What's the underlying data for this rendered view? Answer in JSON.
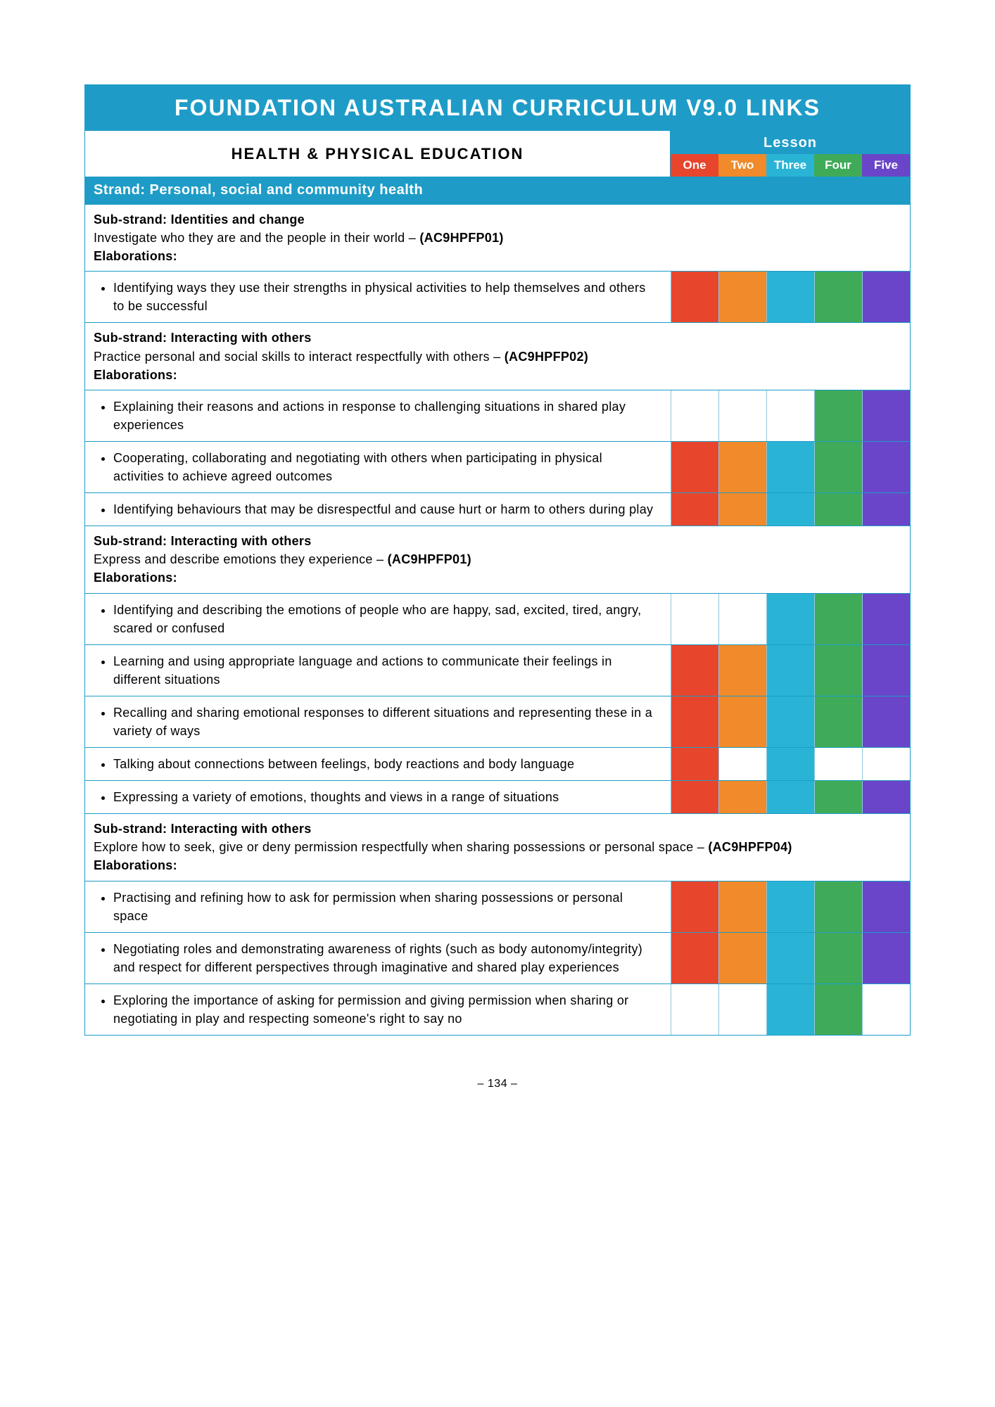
{
  "colors": {
    "header_bg": "#1e9cc7",
    "lesson": {
      "one": "#e8452d",
      "two": "#f08a2a",
      "three": "#29b4d6",
      "four": "#3fab58",
      "five": "#6a45c9"
    },
    "white": "#ffffff"
  },
  "title": "FOUNDATION AUSTRALIAN CURRICULUM V9.0 LINKS",
  "subject": "HEALTH & PHYSICAL EDUCATION",
  "lesson_label": "Lesson",
  "lesson_headers": [
    "One",
    "Two",
    "Three",
    "Four",
    "Five"
  ],
  "strand": "Strand: Personal, social and community health",
  "page_number": "– 134 –",
  "substrands": [
    {
      "title": "Sub-strand: Identities and change",
      "desc_pre": "Investigate who they are and the people in their world – ",
      "code": "(AC9HPFP01)",
      "desc_post": "",
      "elab_label": "Elaborations:",
      "items": [
        {
          "text": "Identifying ways they use their strengths in physical activities to help themselves and others to be successful",
          "marks": [
            "one",
            "two",
            "three",
            "four",
            "five"
          ]
        }
      ]
    },
    {
      "title": "Sub-strand: Interacting with others",
      "desc_pre": "Practice personal and social skills to interact respectfully with others – ",
      "code": "(AC9HPFP02)",
      "desc_post": "",
      "elab_label": "Elaborations:",
      "items": [
        {
          "text": "Explaining their reasons and actions in response to challenging situations in shared play experiences",
          "marks": [
            "four",
            "five"
          ]
        },
        {
          "text": "Cooperating, collaborating and negotiating with others when participating in physical activities to achieve agreed outcomes",
          "marks": [
            "one",
            "two",
            "three",
            "four",
            "five"
          ]
        },
        {
          "text": "Identifying behaviours that may be disrespectful and cause hurt or harm to others during play",
          "marks": [
            "one",
            "two",
            "three",
            "four",
            "five"
          ]
        }
      ]
    },
    {
      "title": "Sub-strand: Interacting with others",
      "desc_pre": "Express and describe emotions they experience – ",
      "code": "(AC9HPFP01)",
      "desc_post": "",
      "elab_label": "Elaborations:",
      "items": [
        {
          "text": "Identifying and describing the emotions of people who are happy, sad, excited, tired, angry, scared or confused",
          "marks": [
            "three",
            "four",
            "five"
          ]
        },
        {
          "text": "Learning and using appropriate language and actions to communicate their feelings in different situations",
          "marks": [
            "one",
            "two",
            "three",
            "four",
            "five"
          ]
        },
        {
          "text": "Recalling and sharing emotional responses to different situations and representing these in a variety of ways",
          "marks": [
            "one",
            "two",
            "three",
            "four",
            "five"
          ]
        },
        {
          "text": "Talking about connections between feelings, body reactions and body language",
          "marks": [
            "one",
            "three"
          ]
        },
        {
          "text": "Expressing a variety of emotions, thoughts and views in a range of situations",
          "marks": [
            "one",
            "two",
            "three",
            "four",
            "five"
          ]
        }
      ]
    },
    {
      "title": "Sub-strand: Interacting with others",
      "desc_pre": "Explore how to seek, give or deny permission respectfully when sharing possessions or personal space – ",
      "code": "(AC9HPFP04)",
      "desc_post": "",
      "elab_label": "Elaborations:",
      "items": [
        {
          "text": "Practising and refining how to ask for permission when sharing possessions or personal space",
          "marks": [
            "one",
            "two",
            "three",
            "four",
            "five"
          ]
        },
        {
          "text": "Negotiating roles and demonstrating awareness of rights (such as body autonomy/integrity) and respect for different perspectives through imaginative and shared play experiences",
          "marks": [
            "one",
            "two",
            "three",
            "four",
            "five"
          ]
        },
        {
          "text": "Exploring the importance of asking for permission and giving permission when sharing or negotiating in play and respecting someone's right to say no",
          "marks": [
            "three",
            "four"
          ]
        }
      ]
    }
  ]
}
